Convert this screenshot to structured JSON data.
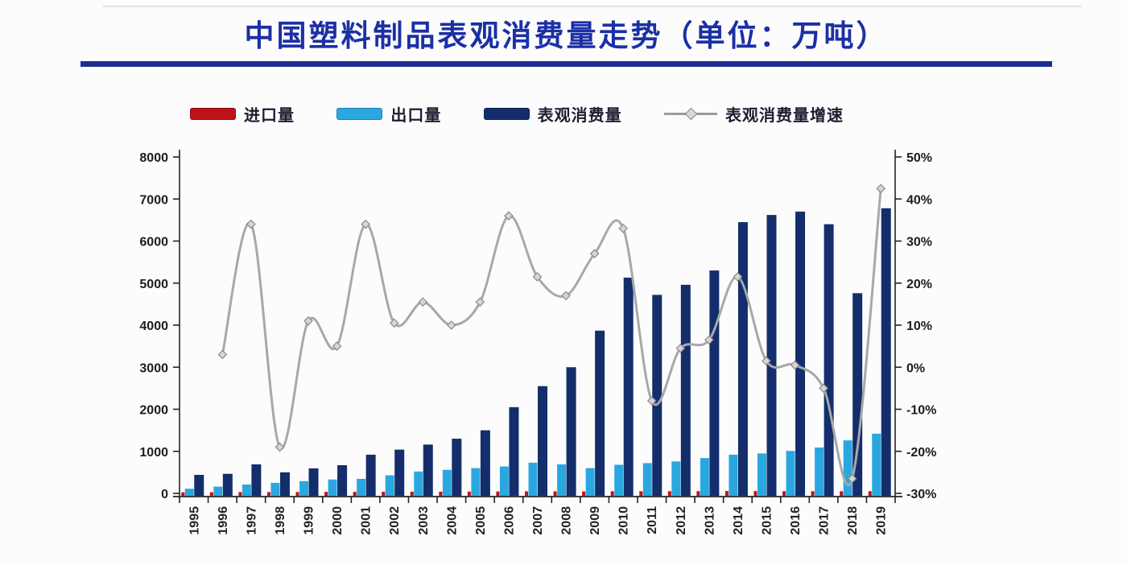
{
  "title": {
    "text": "中国塑料制品表观消费量走势（单位：万吨）"
  },
  "legend": [
    {
      "label": "进口量",
      "type": "bar",
      "color": "#be1118"
    },
    {
      "label": "出口量",
      "type": "bar",
      "color": "#2ba7e0"
    },
    {
      "label": "表观消费量",
      "type": "bar",
      "color": "#132e6b"
    },
    {
      "label": "表观消费量增速",
      "type": "line",
      "color": "#a8a8a8"
    }
  ],
  "colors": {
    "title_blue": "#1b30a4",
    "divider_blue": "#1b2f92",
    "import_red": "#be1118",
    "export_cyan": "#2ba7e0",
    "consumption_navy": "#132e6b",
    "growth_gray": "#a8a8a8",
    "axis_ink": "#222222"
  },
  "chart_data": {
    "type": "combo-bar-line",
    "title": "中国塑料制品表观消费量走势（单位：万吨）",
    "categories": [
      "1995",
      "1996",
      "1997",
      "1998",
      "1999",
      "2000",
      "2001",
      "2002",
      "2003",
      "2004",
      "2005",
      "2006",
      "2007",
      "2008",
      "2009",
      "2010",
      "2011",
      "2012",
      "2013",
      "2014",
      "2015",
      "2016",
      "2017",
      "2018",
      "2019"
    ],
    "series": [
      {
        "name": "进口量",
        "type": "bar",
        "axis": "left",
        "color": "#be1118",
        "values": [
          25,
          28,
          30,
          30,
          32,
          35,
          35,
          38,
          40,
          40,
          42,
          45,
          48,
          48,
          45,
          50,
          50,
          52,
          52,
          55,
          55,
          52,
          52,
          50,
          52
        ]
      },
      {
        "name": "出口量",
        "type": "bar",
        "axis": "left",
        "color": "#2ba7e0",
        "values": [
          110,
          160,
          210,
          250,
          290,
          330,
          345,
          430,
          520,
          560,
          600,
          640,
          730,
          690,
          600,
          680,
          720,
          760,
          840,
          920,
          950,
          1010,
          1090,
          1260,
          1420
        ]
      },
      {
        "name": "表观消费量",
        "type": "bar",
        "axis": "left",
        "color": "#132e6b",
        "values": [
          440,
          465,
          690,
          500,
          595,
          670,
          920,
          1040,
          1160,
          1300,
          1500,
          2050,
          2550,
          3000,
          3870,
          5130,
          4720,
          4960,
          5300,
          6450,
          6620,
          6700,
          6400,
          4760,
          6780
        ]
      },
      {
        "name": "表观消费量增速",
        "type": "line",
        "axis": "right",
        "color": "#a8a8a8",
        "marker": "diamond",
        "values": [
          null,
          3,
          34,
          -19,
          11,
          5,
          34,
          10.5,
          15.5,
          10,
          15.5,
          36,
          21.5,
          17,
          27,
          33,
          -8,
          4.5,
          6.5,
          21.5,
          1.5,
          0.5,
          -5,
          -26.5,
          42.5
        ]
      }
    ],
    "left_axis": {
      "min": 0,
      "max": 8000,
      "step": 1000,
      "ticks": [
        "0",
        "1000",
        "2000",
        "3000",
        "4000",
        "5000",
        "6000",
        "7000",
        "8000"
      ]
    },
    "right_axis": {
      "min": -30,
      "max": 50,
      "step": 10,
      "ticks": [
        "-30%",
        "-20%",
        "-10%",
        "0%",
        "10%",
        "20%",
        "30%",
        "40%",
        "50%"
      ]
    },
    "x_label_rotation": -90,
    "grid": false,
    "legend_position": "top"
  }
}
